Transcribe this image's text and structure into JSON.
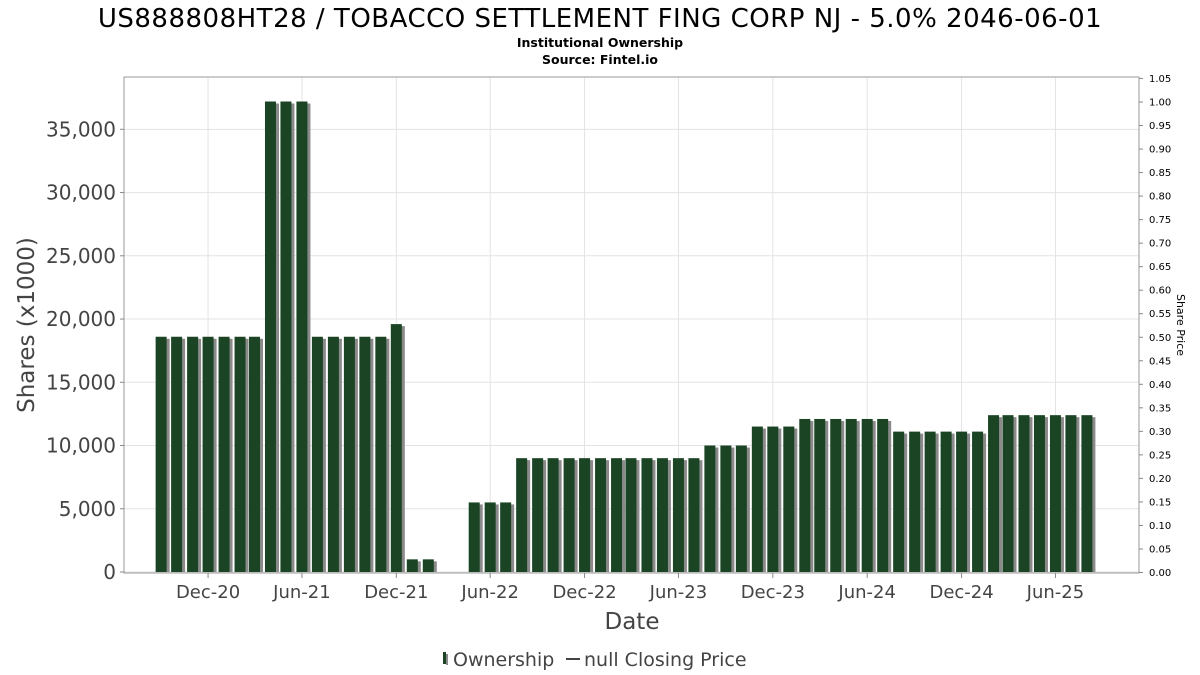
{
  "chart_data": {
    "type": "bar",
    "title": "US888808HT28 / TOBACCO SETTLEMENT FING CORP NJ - 5.0% 2046-06-01",
    "subtitle_1": "Institutional Ownership",
    "subtitle_2": "Source: Fintel.io",
    "xlabel": "Date",
    "ylabel": "Shares (x1000)",
    "ylabel_right": "Share Price",
    "ylim": [
      0,
      39000
    ],
    "ylim_right": [
      0,
      1.05
    ],
    "x_range": [
      "2020-06-21",
      "2025-11-10"
    ],
    "grid": true,
    "legend_position": "bottom",
    "y_ticks": [
      {
        "value": 0,
        "label": "0"
      },
      {
        "value": 5000,
        "label": "5,000"
      },
      {
        "value": 10000,
        "label": "10,000"
      },
      {
        "value": 15000,
        "label": "15,000"
      },
      {
        "value": 20000,
        "label": "20,000"
      },
      {
        "value": 25000,
        "label": "25,000"
      },
      {
        "value": 30000,
        "label": "30,000"
      },
      {
        "value": 35000,
        "label": "35,000"
      }
    ],
    "y_right_ticks": [
      {
        "value": 0.0,
        "label": "0.00"
      },
      {
        "value": 0.05,
        "label": "0.05"
      },
      {
        "value": 0.1,
        "label": "0.10"
      },
      {
        "value": 0.15,
        "label": "0.15"
      },
      {
        "value": 0.2,
        "label": "0.20"
      },
      {
        "value": 0.25,
        "label": "0.25"
      },
      {
        "value": 0.3,
        "label": "0.30"
      },
      {
        "value": 0.35,
        "label": "0.35"
      },
      {
        "value": 0.4,
        "label": "0.40"
      },
      {
        "value": 0.45,
        "label": "0.45"
      },
      {
        "value": 0.5,
        "label": "0.50"
      },
      {
        "value": 0.55,
        "label": "0.55"
      },
      {
        "value": 0.6,
        "label": "0.60"
      },
      {
        "value": 0.65,
        "label": "0.65"
      },
      {
        "value": 0.7,
        "label": "0.70"
      },
      {
        "value": 0.75,
        "label": "0.75"
      },
      {
        "value": 0.8,
        "label": "0.80"
      },
      {
        "value": 0.85,
        "label": "0.85"
      },
      {
        "value": 0.9,
        "label": "0.90"
      },
      {
        "value": 0.95,
        "label": "0.95"
      },
      {
        "value": 1.0,
        "label": "1.00"
      },
      {
        "value": 1.05,
        "label": "1.05"
      }
    ],
    "x_ticks": [
      {
        "date": "2020-12-01",
        "label": "Dec-20"
      },
      {
        "date": "2021-06-01",
        "label": "Jun-21"
      },
      {
        "date": "2021-12-01",
        "label": "Dec-21"
      },
      {
        "date": "2022-06-01",
        "label": "Jun-22"
      },
      {
        "date": "2022-12-01",
        "label": "Dec-22"
      },
      {
        "date": "2023-06-01",
        "label": "Jun-23"
      },
      {
        "date": "2023-12-01",
        "label": "Dec-23"
      },
      {
        "date": "2024-06-01",
        "label": "Jun-24"
      },
      {
        "date": "2024-12-01",
        "label": "Dec-24"
      },
      {
        "date": "2025-06-01",
        "label": "Jun-25"
      }
    ],
    "series": [
      {
        "name": "Ownership",
        "color": "#1b4424",
        "shadow_color": "#8a8a8a",
        "x": [
          "2020-09-01",
          "2020-10-01",
          "2020-11-01",
          "2020-12-01",
          "2021-01-01",
          "2021-02-01",
          "2021-03-01",
          "2021-04-01",
          "2021-05-01",
          "2021-06-01",
          "2021-07-01",
          "2021-08-01",
          "2021-09-01",
          "2021-10-01",
          "2021-11-01",
          "2021-12-01",
          "2022-01-01",
          "2022-02-01",
          "2022-05-01",
          "2022-06-01",
          "2022-07-01",
          "2022-08-01",
          "2022-09-01",
          "2022-10-01",
          "2022-11-01",
          "2022-12-01",
          "2023-01-01",
          "2023-02-01",
          "2023-03-01",
          "2023-04-01",
          "2023-05-01",
          "2023-06-01",
          "2023-07-01",
          "2023-08-01",
          "2023-09-01",
          "2023-10-01",
          "2023-11-01",
          "2023-12-01",
          "2024-01-01",
          "2024-02-01",
          "2024-03-01",
          "2024-04-01",
          "2024-05-01",
          "2024-06-01",
          "2024-07-01",
          "2024-08-01",
          "2024-09-01",
          "2024-10-01",
          "2024-11-01",
          "2024-12-01",
          "2025-01-01",
          "2025-02-01",
          "2025-03-01",
          "2025-04-01",
          "2025-05-01",
          "2025-06-01",
          "2025-07-01",
          "2025-08-01"
        ],
        "values": [
          18600,
          18600,
          18600,
          18600,
          18600,
          18600,
          18600,
          37200,
          37200,
          37200,
          18600,
          18600,
          18600,
          18600,
          18600,
          19600,
          1000,
          1000,
          5500,
          5500,
          5500,
          9000,
          9000,
          9000,
          9000,
          9000,
          9000,
          9000,
          9000,
          9000,
          9000,
          9000,
          9000,
          10000,
          10000,
          10000,
          11500,
          11500,
          11500,
          12100,
          12100,
          12100,
          12100,
          12100,
          12100,
          11100,
          11100,
          11100,
          11100,
          11100,
          11100,
          12400,
          12400,
          12400,
          12400,
          12400,
          12400,
          12400
        ]
      },
      {
        "name": "null Closing Price",
        "color": "#444444",
        "values": []
      }
    ]
  }
}
